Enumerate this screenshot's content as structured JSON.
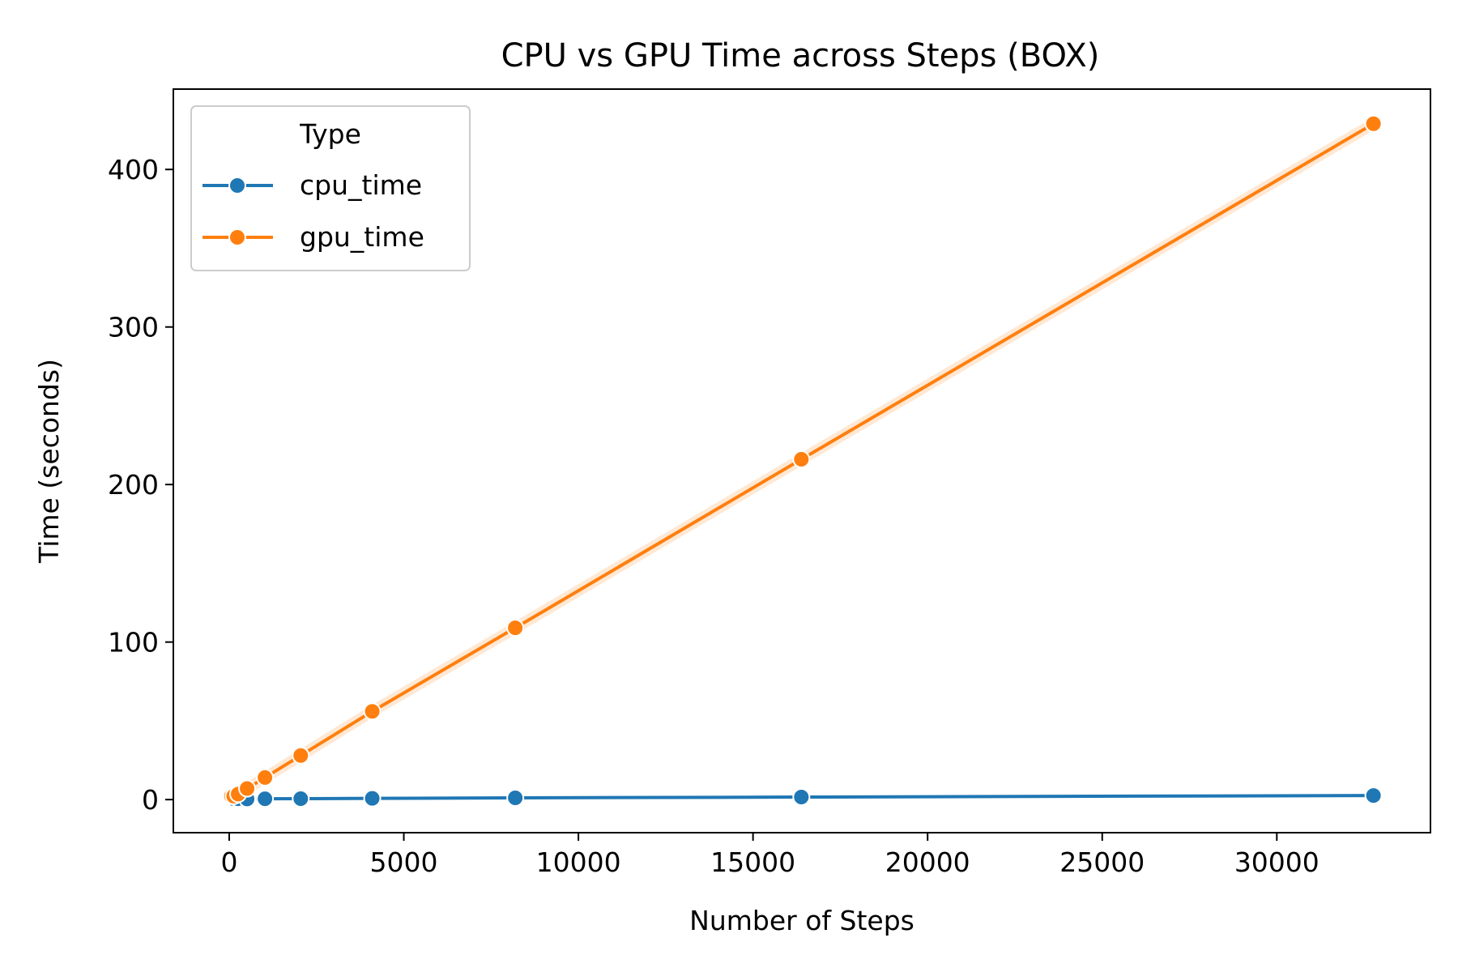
{
  "chart_data": {
    "type": "line",
    "title": "CPU vs GPU Time across Steps (BOX)",
    "xlabel": "Number of Steps",
    "ylabel": "Time (seconds)",
    "xlim": [
      -1600,
      34400
    ],
    "ylim": [
      -21,
      451
    ],
    "xticks": [
      0,
      5000,
      10000,
      15000,
      20000,
      25000,
      30000
    ],
    "yticks": [
      0,
      100,
      200,
      300,
      400
    ],
    "grid": false,
    "legend": {
      "title": "Type",
      "position": "top-left"
    },
    "series": [
      {
        "name": "cpu_time",
        "color": "#1f77b4",
        "x": [
          8,
          16,
          32,
          64,
          128,
          256,
          512,
          1024,
          2048,
          4096,
          8192,
          16384,
          32768
        ],
        "y": [
          1.2,
          0.8,
          0.6,
          0.5,
          0.5,
          0.5,
          0.4,
          0.5,
          0.6,
          0.8,
          1.1,
          1.6,
          2.6
        ]
      },
      {
        "name": "gpu_time",
        "color": "#ff7f0e",
        "x": [
          8,
          16,
          32,
          64,
          128,
          256,
          512,
          1024,
          2048,
          4096,
          8192,
          16384,
          32768
        ],
        "y": [
          2.8,
          2.4,
          2.3,
          2.2,
          2.2,
          3.5,
          7,
          14,
          28,
          56,
          109,
          216,
          429
        ]
      }
    ]
  }
}
